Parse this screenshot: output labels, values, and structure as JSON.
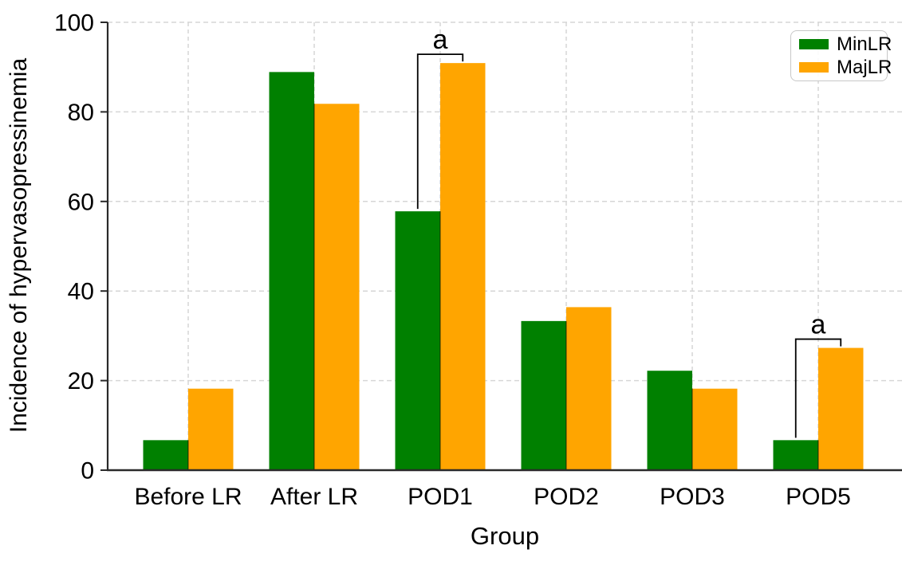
{
  "chart_data": {
    "type": "bar",
    "title": "",
    "xlabel": "Group",
    "ylabel": "Incidence of hypervasopressinemia",
    "categories": [
      "Before LR",
      "After LR",
      "POD1",
      "POD2",
      "POD3",
      "POD5"
    ],
    "series": [
      {
        "name": "MinLR",
        "color": "#008000",
        "values": [
          6.7,
          88.9,
          57.8,
          33.3,
          22.2,
          6.7
        ]
      },
      {
        "name": "MajLR",
        "color": "#FFA500",
        "values": [
          18.2,
          81.8,
          90.9,
          36.4,
          18.2,
          27.3
        ]
      }
    ],
    "ylim": [
      0,
      100
    ],
    "yticks": [
      0,
      20,
      40,
      60,
      80,
      100
    ],
    "grid": {
      "visible": true,
      "style": "dashed",
      "color": "#d6d6d6"
    },
    "legend": {
      "position": "top-right",
      "entries": [
        "MinLR",
        "MajLR"
      ]
    },
    "annotations": [
      {
        "category": "POD1",
        "label": "a",
        "type": "significance-bracket"
      },
      {
        "category": "POD5",
        "label": "a",
        "type": "significance-bracket"
      }
    ]
  },
  "colors": {
    "axis": "#2a2a2a",
    "text": "#000000",
    "gridline": "#d6d6d6",
    "legend_border": "#c8c8c8",
    "bar_divider": "rgba(0,0,0,0.45)"
  }
}
